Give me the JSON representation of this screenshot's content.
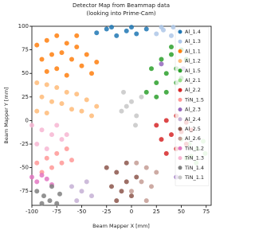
{
  "chart_data": {
    "type": "scatter",
    "title": "Detector Map from Beammap data",
    "subtitle": "(looking into Prime-Cam)",
    "x_label": "Beam Mapper X [mm]",
    "y_label": "Beam Mapper Y [mm]",
    "xlim": [
      -100,
      80
    ],
    "ylim": [
      -90,
      100
    ],
    "xticks": [
      -100,
      -75,
      -50,
      -25,
      0,
      25,
      50,
      75
    ],
    "yticks": [
      -75,
      -50,
      -25,
      0,
      25,
      50,
      75,
      100
    ],
    "legend": "upper right",
    "series": [
      {
        "name": "Al_1.4",
        "color": "#1f77b4",
        "x": [
          -35,
          -25,
          -15,
          -5,
          5,
          15,
          -20,
          0
        ],
        "y": [
          93,
          97,
          90,
          95,
          92,
          97,
          99,
          99
        ]
      },
      {
        "name": "Al_1.3",
        "color": "#aec7e8",
        "x": [
          25,
          32,
          40,
          47,
          30,
          42
        ],
        "y": [
          92,
          96,
          90,
          95,
          99,
          99
        ]
      },
      {
        "name": "Al_1.1",
        "color": "#ff7f0e",
        "x": [
          -95,
          -85,
          -75,
          -65,
          -55,
          -45,
          -35,
          -90,
          -80,
          -70,
          -60,
          -50,
          -40,
          -85,
          -75,
          -65,
          -55
        ],
        "y": [
          80,
          85,
          90,
          82,
          78,
          70,
          62,
          65,
          70,
          72,
          65,
          58,
          50,
          52,
          55,
          48,
          90
        ]
      },
      {
        "name": "Al_1.2",
        "color": "#ffbb78",
        "x": [
          -95,
          -85,
          -75,
          -65,
          -55,
          -45,
          -35,
          -90,
          -80,
          -70,
          -60,
          -50,
          -40,
          -95,
          -85
        ],
        "y": [
          40,
          38,
          35,
          30,
          28,
          22,
          15,
          25,
          20,
          18,
          12,
          10,
          5,
          10,
          8
        ]
      },
      {
        "name": "Al_1.5",
        "color": "#2ca02c",
        "x": [
          15,
          25,
          35,
          45,
          55,
          20,
          30,
          40,
          50,
          25,
          35,
          45,
          50,
          40
        ],
        "y": [
          30,
          40,
          50,
          55,
          65,
          55,
          65,
          70,
          75,
          25,
          30,
          40,
          45,
          78
        ]
      },
      {
        "name": "Al_2.1",
        "color": "#98df8a",
        "x": [
          50,
          58,
          66,
          74,
          55,
          65,
          72,
          60
        ],
        "y": [
          -20,
          -25,
          -30,
          -35,
          -40,
          -45,
          -22,
          -38
        ]
      },
      {
        "name": "Al_2.2",
        "color": "#d62728",
        "x": [
          25,
          35,
          45,
          55,
          30,
          40,
          50,
          35,
          45,
          55,
          60
        ],
        "y": [
          -5,
          0,
          5,
          -2,
          -20,
          -15,
          -12,
          -35,
          -30,
          -25,
          -10
        ]
      },
      {
        "name": "TiN_1.5",
        "color": "#ff9896",
        "x": [
          -95,
          -85,
          -75,
          -65,
          -90,
          -80,
          -70,
          -60
        ],
        "y": [
          -45,
          -40,
          -35,
          -30,
          -55,
          -50,
          -45,
          -42
        ]
      },
      {
        "name": "Al_2.3",
        "color": "#9467bd",
        "x": [
          52,
          30,
          45
        ],
        "y": [
          55,
          60,
          -60
        ]
      },
      {
        "name": "Al_2.4",
        "color": "#c5b0d5",
        "x": [
          -60,
          -50,
          -40,
          -55,
          -45
        ],
        "y": [
          -70,
          -75,
          -80,
          -85,
          -65
        ]
      },
      {
        "name": "Al_2.5",
        "color": "#8c564b",
        "x": [
          -25,
          -15,
          -5,
          5,
          -20,
          -10,
          0,
          -15,
          -5
        ],
        "y": [
          -50,
          -55,
          -45,
          -60,
          -70,
          -75,
          -80,
          -85,
          -65
        ]
      },
      {
        "name": "Al_2.6",
        "color": "#c49c94",
        "x": [
          5,
          15,
          25,
          10,
          20,
          0,
          15
        ],
        "y": [
          -45,
          -50,
          -55,
          -65,
          -70,
          -75,
          -85
        ]
      },
      {
        "name": "TiN_1.2",
        "color": "#e377c2",
        "x": [
          -100,
          -95,
          -90,
          -85,
          -80
        ],
        "y": [
          -60,
          -65,
          -58,
          -62,
          -68
        ]
      },
      {
        "name": "TiN_1.3",
        "color": "#f7b6d2",
        "x": [
          -100,
          -90,
          -80,
          -70,
          -95,
          -85,
          -75,
          -65
        ],
        "y": [
          -5,
          -10,
          -15,
          -20,
          -25,
          -30,
          -5,
          -15
        ]
      },
      {
        "name": "TiN_1.4",
        "color": "#7f7f7f",
        "x": [
          -95,
          -88,
          -80,
          -72,
          -90,
          -82,
          -75
        ],
        "y": [
          -75,
          -80,
          -70,
          -78,
          -88,
          -85,
          -88
        ]
      },
      {
        "name": "TiN_1.1",
        "color": "#c7c7c7",
        "x": [
          -10,
          -5,
          0,
          5,
          10,
          -8,
          4
        ],
        "y": [
          10,
          15,
          20,
          5,
          25,
          30,
          -5
        ]
      }
    ]
  }
}
